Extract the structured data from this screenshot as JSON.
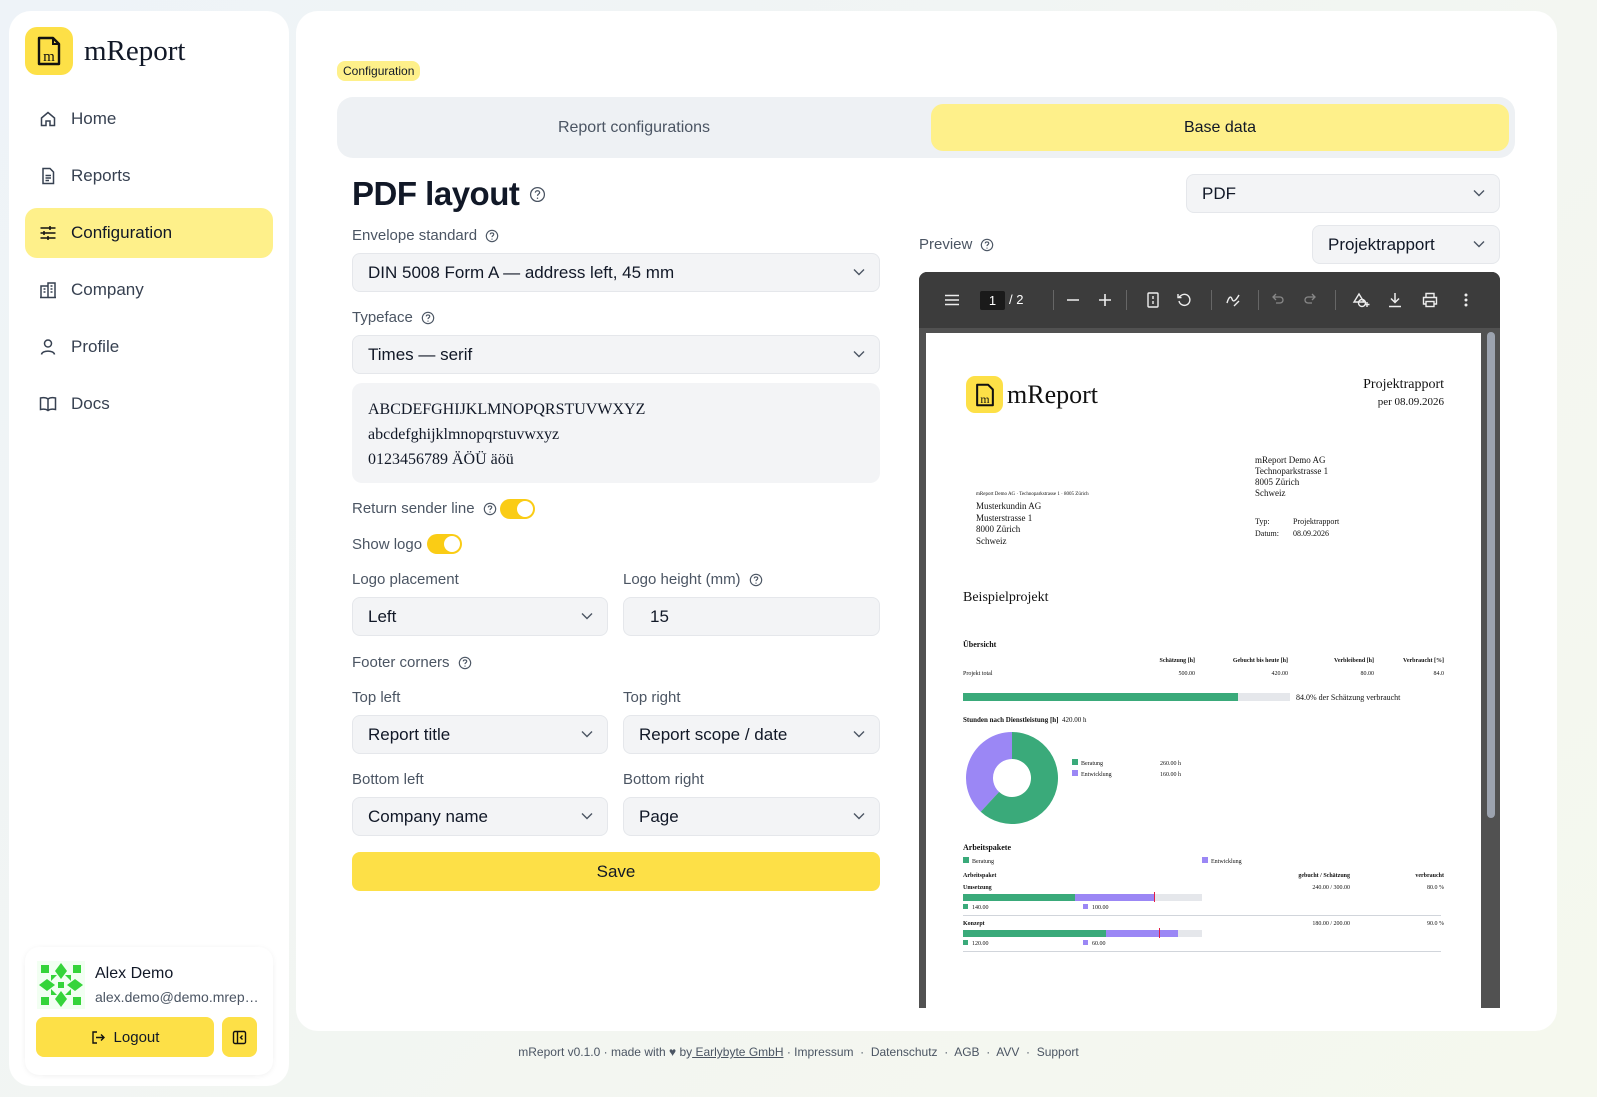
{
  "app": {
    "name": "mReport",
    "version_footer": "mReport v0.1.0 · made with ♥ by"
  },
  "sidebar": {
    "items": [
      {
        "label": "Home",
        "icon": "home-icon"
      },
      {
        "label": "Reports",
        "icon": "reports-icon"
      },
      {
        "label": "Configuration",
        "icon": "sliders-icon",
        "active": true
      },
      {
        "label": "Company",
        "icon": "building-icon"
      },
      {
        "label": "Profile",
        "icon": "user-icon"
      },
      {
        "label": "Docs",
        "icon": "book-icon"
      }
    ]
  },
  "user": {
    "name": "Alex Demo",
    "email": "alex.demo@demo.mreport.ch",
    "logout_label": "Logout"
  },
  "breadcrumb": "Configuration",
  "tabs": [
    {
      "label": "Report configurations"
    },
    {
      "label": "Base data",
      "active": true
    }
  ],
  "page": {
    "title": "PDF layout"
  },
  "format_select": "PDF",
  "form": {
    "envelope": {
      "label": "Envelope standard",
      "value": "DIN 5008 Form A — address left, 45 mm"
    },
    "typeface": {
      "label": "Typeface",
      "value": "Times — serif"
    },
    "sample": {
      "line1": "ABCDEFGHIJKLMNOPQRSTUVWXYZ",
      "line2": "abcdefghijklmnopqrstuvwxyz",
      "line3": "0123456789 ÄÖÜ äöü"
    },
    "return_sender": {
      "label": "Return sender line",
      "on": true
    },
    "show_logo": {
      "label": "Show logo",
      "on": true
    },
    "logo_placement": {
      "label": "Logo placement",
      "value": "Left"
    },
    "logo_height": {
      "label": "Logo height (mm)",
      "value": "15"
    },
    "footer_corners": {
      "label": "Footer corners"
    },
    "top_left": {
      "label": "Top left",
      "value": "Report title"
    },
    "top_right": {
      "label": "Top right",
      "value": "Report scope / date"
    },
    "bottom_left": {
      "label": "Bottom left",
      "value": "Company name"
    },
    "bottom_right": {
      "label": "Bottom right",
      "value": "Page"
    },
    "save_label": "Save"
  },
  "preview": {
    "label": "Preview",
    "report_select": "Projektrapport",
    "viewer": {
      "page": "1",
      "total": "/  2"
    },
    "doc": {
      "brand": "mReport",
      "title": "Projektrapport",
      "scope": "per 08.09.2026",
      "sender": [
        "mReport Demo AG",
        "Technoparkstrasse 1",
        "8005 Zürich",
        "Schweiz"
      ],
      "return_line": "mReport Demo AG · Technoparkstrasse 1 · 8005 Zürich",
      "recipient": [
        "Musterkundin AG",
        "Musterstrasse 1",
        "8000 Zürich",
        "Schweiz"
      ],
      "meta": [
        {
          "k": "Typ:",
          "v": "Projektrapport"
        },
        {
          "k": "Datum:",
          "v": "08.09.2026"
        }
      ],
      "project": "Beispielprojekt",
      "overview_title": "Übersicht",
      "overview_headers": [
        "Schätzung [h]",
        "Gebucht bis heute [h]",
        "Verbleibend [h]",
        "Verbraucht [%]"
      ],
      "overview_row": {
        "label": "Projekt total",
        "values": [
          "500.00",
          "420.00",
          "80.00",
          "84.0"
        ]
      },
      "usage_text": "84.0% der Schätzung verbraucht",
      "usage_fraction": 0.84,
      "hours_title": "Stunden nach Dienstleistung [h]",
      "hours_total": "420.00 h",
      "donut": [
        {
          "name": "Beratung",
          "value": 260,
          "label": "260.00 h",
          "color": "#3aaa7a"
        },
        {
          "name": "Entwicklung",
          "value": 160,
          "label": "160.00 h",
          "color": "#9b87f5"
        }
      ],
      "wp_title": "Arbeitspakete",
      "wp_legend": [
        "Beratung",
        "Entwicklung"
      ],
      "wp_headers": [
        "Arbeitspaket",
        "gebucht / Schätzung",
        "verbraucht"
      ],
      "wp_rows": [
        {
          "name": "Umsetzung",
          "booked": "240.00 / 300.00",
          "pct": "80.0 %",
          "a": 140,
          "b": 100,
          "est": 300,
          "a_label": "140.00",
          "b_label": "100.00"
        },
        {
          "name": "Konzept",
          "booked": "180.00 / 200.00",
          "pct": "90.0 %",
          "a": 120,
          "b": 60,
          "est": 200,
          "a_label": "120.00",
          "b_label": "60.00"
        }
      ]
    }
  },
  "footer": {
    "company": " Earlybyte GmbH",
    "links": [
      "Impressum",
      "Datenschutz",
      "AGB",
      "AVV",
      "Support"
    ]
  }
}
